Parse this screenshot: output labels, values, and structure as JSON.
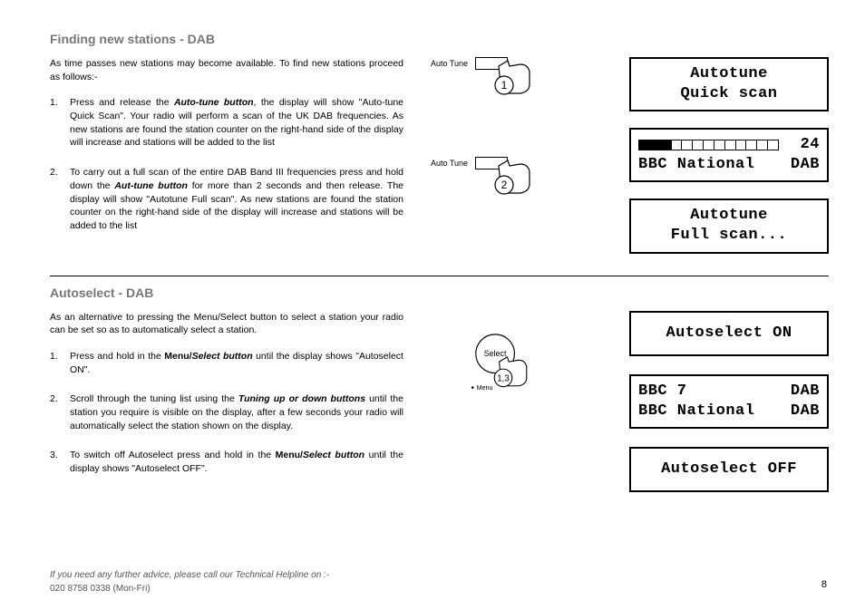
{
  "section1": {
    "title": "Finding new stations - DAB",
    "intro": "As time passes new stations may become available. To find new stations proceed as follows:-",
    "step1_pre": "Press and release the ",
    "step1_bold": "Auto-tune button",
    "step1_post": ", the display will show \"Auto-tune Quick Scan\". Your radio will perform a scan of the UK DAB frequencies. As new stations are found the station counter on the right-hand side of the display will increase and stations will be added to the list",
    "step2_pre": "To carry out a full scan of the entire DAB Band III frequencies press and hold down the ",
    "step2_bold": "Aut-tune button",
    "step2_post": " for more than 2 seconds and then release. The display will show \"Autotune Full scan\". As new stations are found the station counter on the right-hand side of the display will increase and stations will be added to the list",
    "autotune_label": "Auto Tune",
    "illus1_num": "1",
    "illus2_num": "2",
    "lcd1_line1": "Autotune",
    "lcd1_line2": "Quick scan",
    "lcd2_count": "24",
    "lcd2_line2a": "BBC National",
    "lcd2_line2b": "DAB",
    "lcd3_line1": "Autotune",
    "lcd3_line2": "Full scan...",
    "progress_filled": 3,
    "progress_total": 13
  },
  "section2": {
    "title": "Autoselect - DAB",
    "intro": "As an alternative to pressing the Menu/Select button to select a station your radio can be set so as to automatically select a station.",
    "step1_pre": " Press and hold in the ",
    "step1_b1": "Menu/",
    "step1_bi": "Select button",
    "step1_post": " until the display shows \"Autoselect ON\".",
    "step2_pre": "Scroll through the tuning list using the ",
    "step2_bi": "Tuning up or down buttons",
    "step2_post": " until the station you require is visible on the display, after a few seconds your radio will automatically select the station shown on the display.",
    "step3_pre": "To switch off Autoselect press and hold in the ",
    "step3_b1": "Menu/",
    "step3_bi": "Select button",
    "step3_post": " until the display shows \"Autoselect OFF\".",
    "select_label": "Select",
    "menu_label": "Menu",
    "illus_num": "1,3",
    "lcd1": "Autoselect ON",
    "lcd2_line1a": "BBC 7",
    "lcd2_line1b": "DAB",
    "lcd2_line2a": "BBC National",
    "lcd2_line2b": "DAB",
    "lcd3": "Autoselect OFF"
  },
  "footer": {
    "line1": "If you need any further advice, please call our Technical Helpline on :-",
    "line2": "020 8758 0338 (Mon-Fri)"
  },
  "page_number": "8",
  "colors": {
    "title_grey": "#777777",
    "text": "#000000",
    "footer_grey": "#555555"
  }
}
